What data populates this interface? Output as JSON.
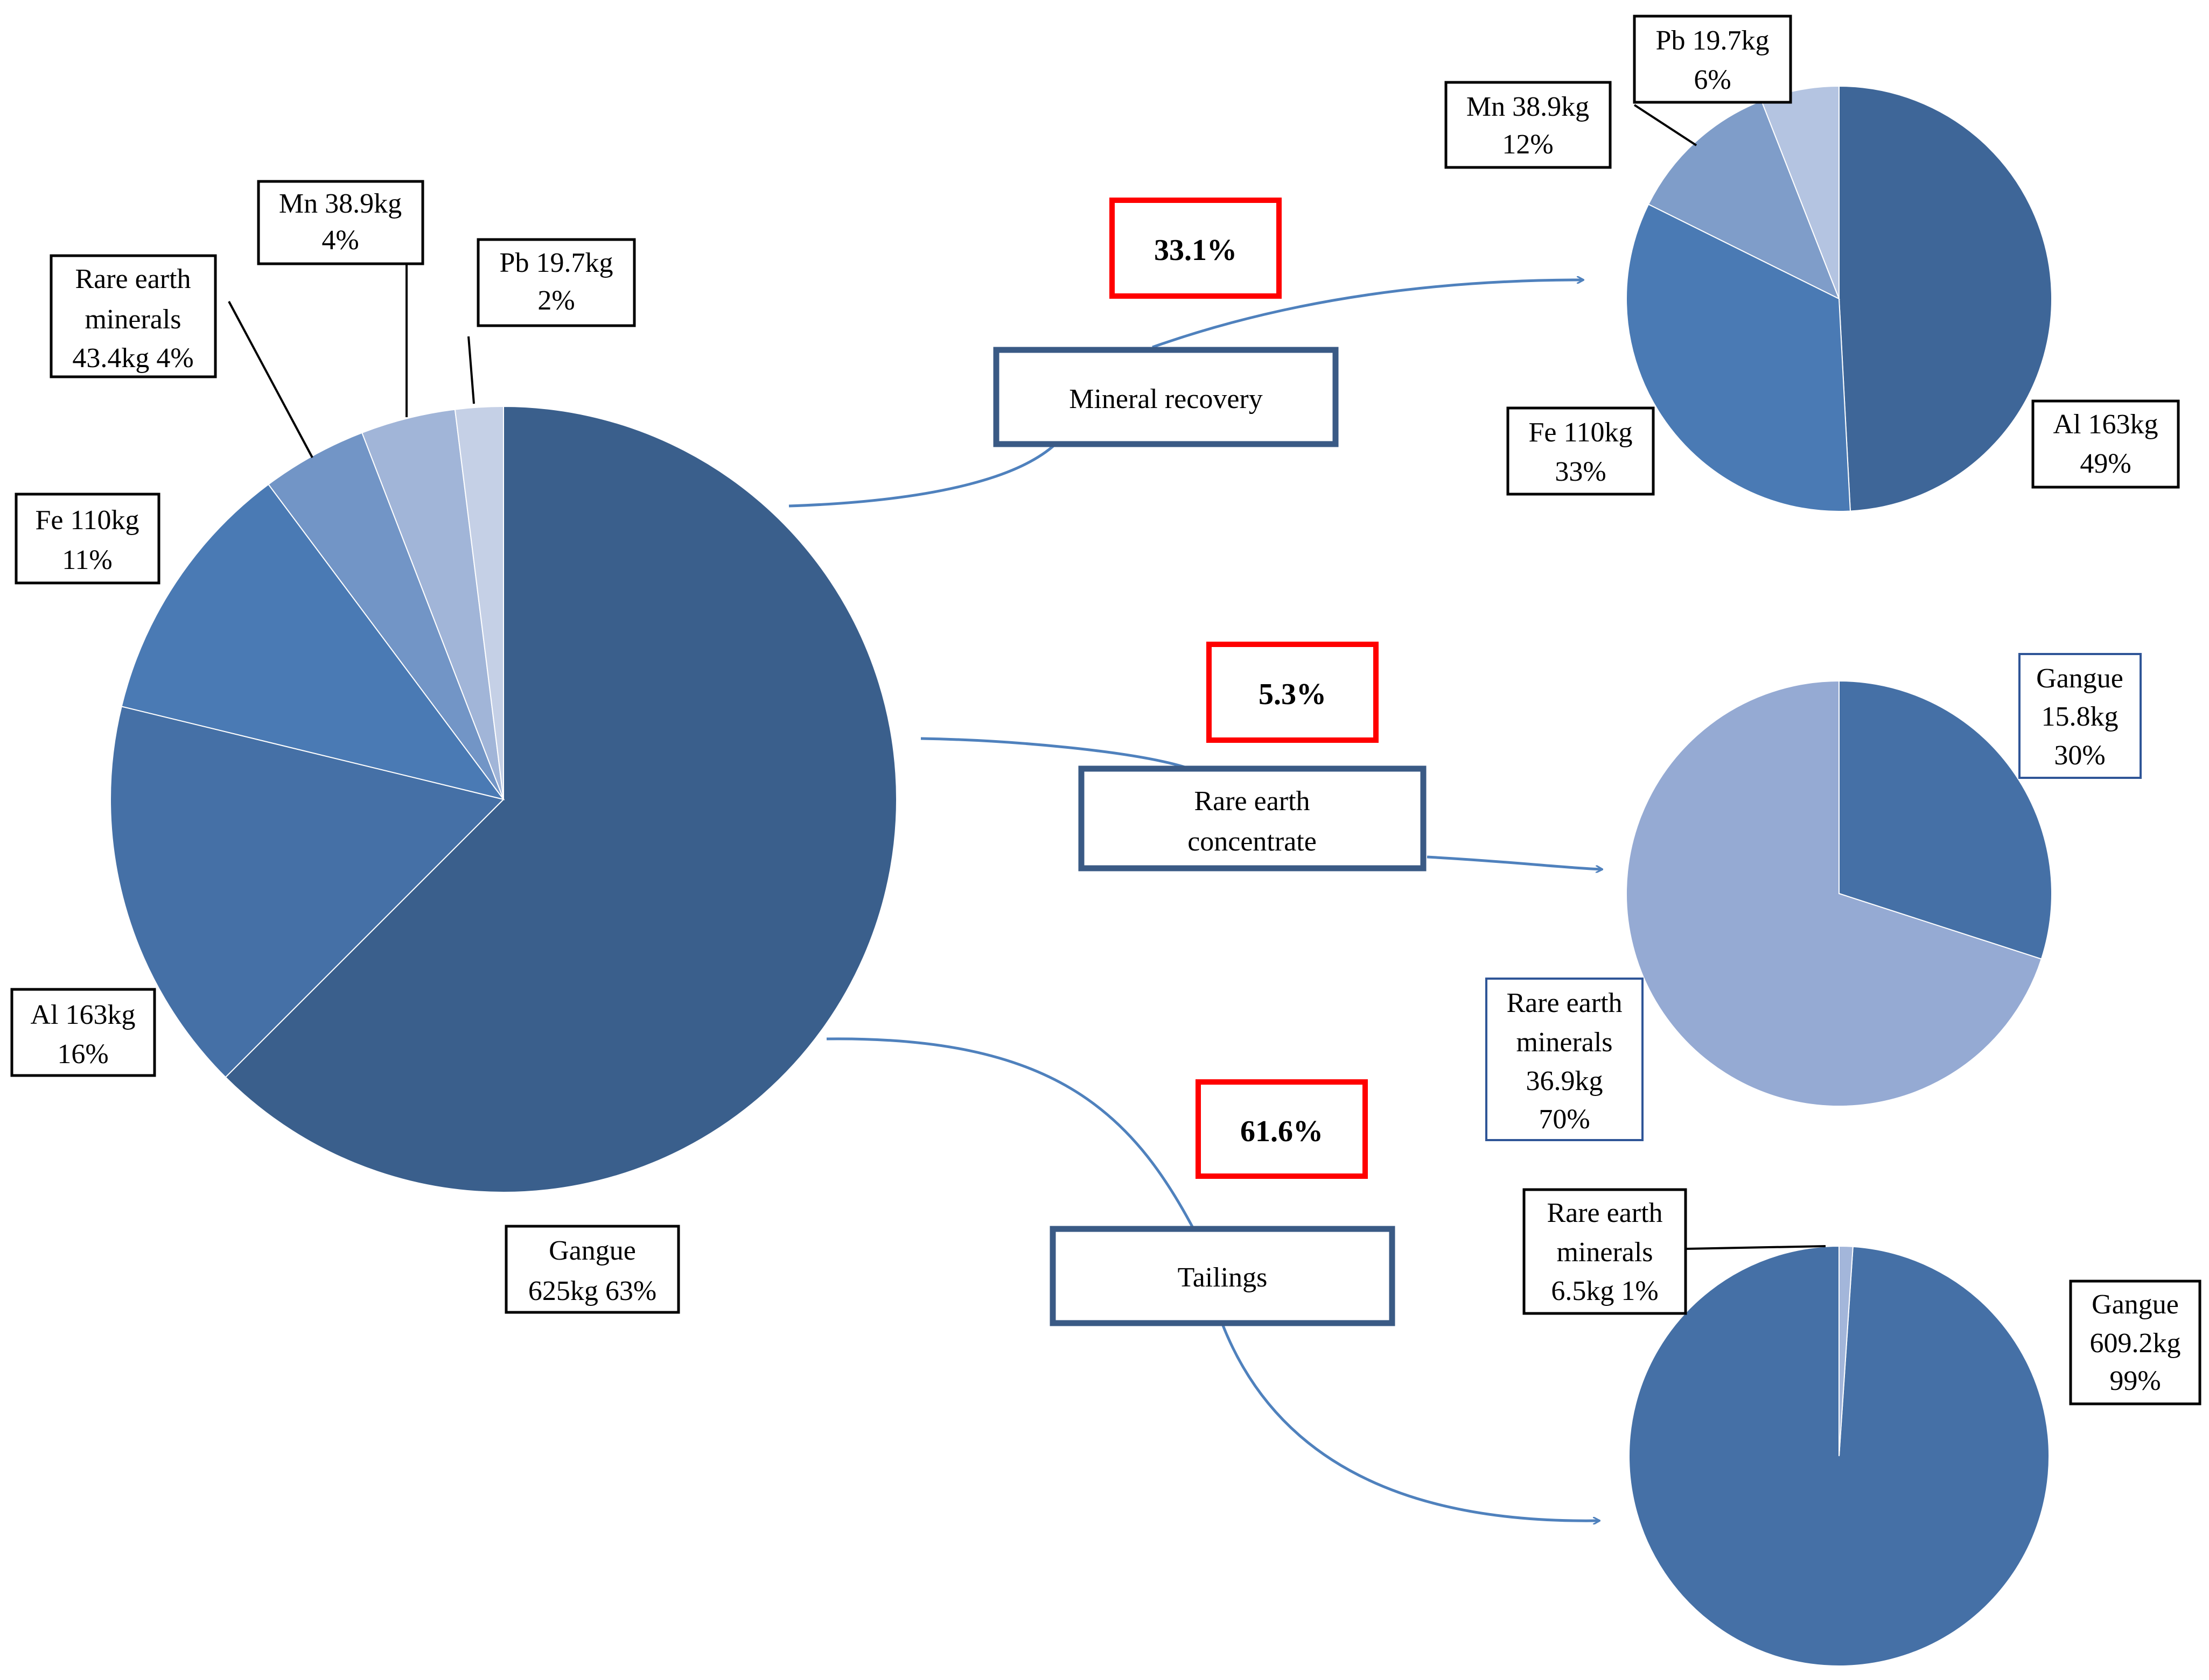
{
  "chart_data": [
    {
      "type": "pie",
      "label_color": "#000000",
      "slices": [
        {
          "name": "Gangue",
          "value": 625,
          "unit": "kg",
          "percent": 63,
          "color": "#3a5f8c",
          "label_lines": [
            "Gangue",
            "625kg 63%"
          ]
        },
        {
          "name": "Al",
          "value": 163,
          "unit": "kg",
          "percent": 16,
          "color": "#4570a6",
          "label_lines": [
            "Al 163kg",
            "16%"
          ]
        },
        {
          "name": "Fe",
          "value": 110,
          "unit": "kg",
          "percent": 11,
          "color": "#4a7ab4",
          "label_lines": [
            "Fe 110kg",
            "11%"
          ]
        },
        {
          "name": "Rare earth minerals",
          "value": 43.4,
          "unit": "kg",
          "percent": 4,
          "color": "#7295c6",
          "label_lines": [
            "Rare earth",
            "minerals",
            "43.4kg 4%"
          ]
        },
        {
          "name": "Mn",
          "value": 38.9,
          "unit": "kg",
          "percent": 4,
          "color": "#a1b5d8",
          "label_lines": [
            "Mn 38.9kg",
            "4%"
          ]
        },
        {
          "name": "Pb",
          "value": 19.7,
          "unit": "kg",
          "percent": 2,
          "color": "#c5d0e6",
          "label_lines": [
            "Pb 19.7kg",
            "2%"
          ]
        }
      ]
    },
    {
      "type": "pie",
      "slices": [
        {
          "name": "Al",
          "value": 163,
          "unit": "kg",
          "percent": 49,
          "color": "#3e6698",
          "label_lines": [
            "Al 163kg",
            "49%"
          ]
        },
        {
          "name": "Fe",
          "value": 110,
          "unit": "kg",
          "percent": 33,
          "color": "#4a7ab4",
          "label_lines": [
            "Fe 110kg",
            "33%"
          ]
        },
        {
          "name": "Mn",
          "value": 38.9,
          "unit": "kg",
          "percent": 12,
          "color": "#7f9dc9",
          "label_lines": [
            "Mn 38.9kg",
            "12%"
          ]
        },
        {
          "name": "Pb",
          "value": 19.7,
          "unit": "kg",
          "percent": 6,
          "color": "#b4c4e1",
          "label_lines": [
            "Pb 19.7kg",
            "6%"
          ]
        }
      ]
    },
    {
      "type": "pie",
      "slices": [
        {
          "name": "Gangue",
          "value": 15.8,
          "unit": "kg",
          "percent": 30,
          "color": "#4570a6",
          "label_lines": [
            "Gangue",
            "15.8kg",
            "30%"
          ]
        },
        {
          "name": "Rare earth minerals",
          "value": 36.9,
          "unit": "kg",
          "percent": 70,
          "color": "#95aad3",
          "label_lines": [
            "Rare earth",
            "minerals",
            "36.9kg",
            "70%"
          ]
        }
      ]
    },
    {
      "type": "pie",
      "slices": [
        {
          "name": "Gangue",
          "value": 609.2,
          "unit": "kg",
          "percent": 99,
          "color": "#4570a6",
          "label_lines": [
            "Gangue",
            "609.2kg",
            "99%"
          ]
        },
        {
          "name": "Rare earth minerals",
          "value": 6.5,
          "unit": "kg",
          "percent": 1,
          "color": "#a3b6da",
          "label_lines": [
            "Rare earth",
            "minerals",
            "6.5kg 1%"
          ]
        }
      ]
    }
  ],
  "flows": [
    {
      "name": "Mineral recovery",
      "share": "33.1%",
      "label_lines": [
        "Mineral recovery"
      ]
    },
    {
      "name": "Rare earth concentrate",
      "share": "5.3%",
      "label_lines": [
        "Rare earth",
        "concentrate"
      ]
    },
    {
      "name": "Tailings",
      "share": "61.6%",
      "label_lines": [
        "Tailings"
      ]
    }
  ],
  "colors": {
    "flow_arrow": "#4f81bd",
    "share_box": "#ff0000",
    "stage_box": "#3a5a85"
  }
}
